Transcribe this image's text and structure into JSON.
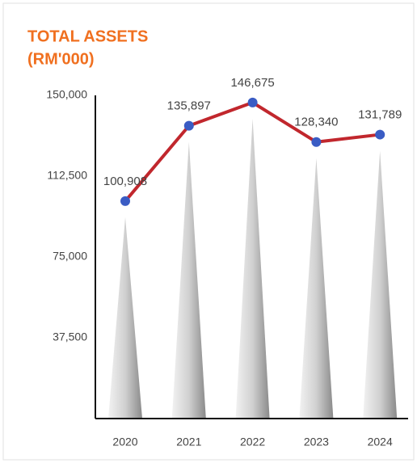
{
  "chart_data": {
    "type": "line",
    "title": [
      "TOTAL ASSETS",
      "(RM'000)"
    ],
    "categories": [
      "2020",
      "2021",
      "2022",
      "2023",
      "2024"
    ],
    "series": [
      {
        "color": "#c1272d",
        "values": [
          100908,
          135897,
          146675,
          128340,
          131789
        ],
        "value_labels": [
          "100,908",
          "135,897",
          "146,675",
          "128,340",
          "131,789"
        ]
      }
    ],
    "marker_color": "#3a5cc4",
    "ylim": [
      0,
      150000
    ],
    "yticks": [
      {
        "value": 37500,
        "label": "37,500"
      },
      {
        "value": 75000,
        "label": "75,000"
      },
      {
        "value": 112500,
        "label": "112,500"
      },
      {
        "value": 150000,
        "label": "150,000"
      }
    ]
  }
}
